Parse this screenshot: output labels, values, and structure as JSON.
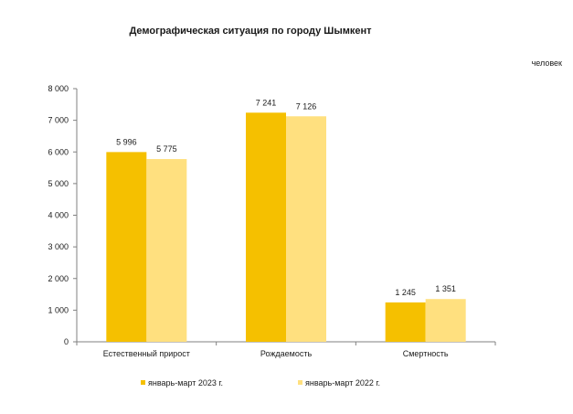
{
  "chart_data": {
    "type": "bar",
    "title": "Демографическая ситуация по городу Шымкент",
    "unit_label": "человек",
    "categories": [
      "Естественный прирост",
      "Рождаемость",
      "Смертность"
    ],
    "series": [
      {
        "name": "январь-март 2023 г.",
        "values": [
          5996,
          7241,
          1245
        ],
        "labels": [
          "5 996",
          "7 241",
          "1 245"
        ],
        "color": "#f5c000"
      },
      {
        "name": "январь-март 2022 г.",
        "values": [
          5775,
          7126,
          1351
        ],
        "labels": [
          "5 775",
          "7 126",
          "1 351"
        ],
        "color": "#ffe07f"
      }
    ],
    "ylim": [
      0,
      8000
    ],
    "yticks": [
      0,
      1000,
      2000,
      3000,
      4000,
      5000,
      6000,
      7000,
      8000
    ],
    "ytick_labels": [
      "0",
      "1 000",
      "2 000",
      "3 000",
      "4 000",
      "5 000",
      "6 000",
      "7 000",
      "8 000"
    ],
    "grid": false,
    "legend_position": "bottom",
    "axis_color": "#808080"
  }
}
